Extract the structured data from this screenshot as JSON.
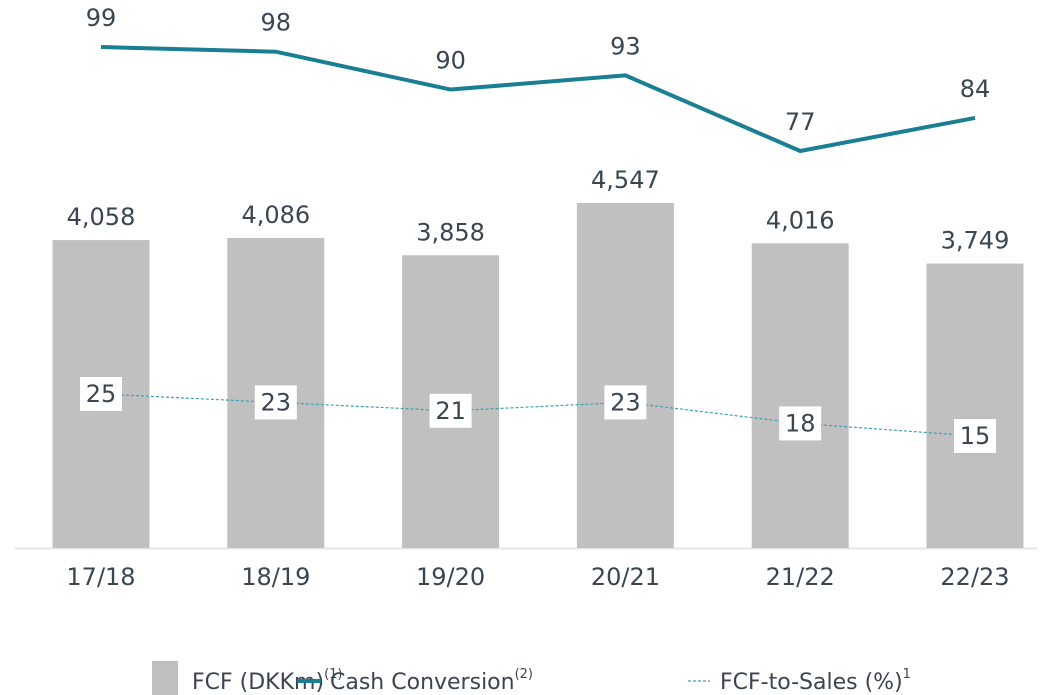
{
  "chart_data": {
    "type": "bar",
    "categories": [
      "17/18",
      "18/19",
      "19/20",
      "20/21",
      "21/22",
      "22/23"
    ],
    "series": [
      {
        "name": "FCF (DKKm)",
        "name_sup": "(1)",
        "type": "bar",
        "color": "#c0c0c0",
        "values": [
          4058,
          4086,
          3858,
          4547,
          4016,
          3749
        ],
        "value_labels": [
          "4,058",
          "4,086",
          "3,858",
          "4,547",
          "4,016",
          "3,749"
        ]
      },
      {
        "name": "Cash Conversion",
        "name_sup": "(2)",
        "type": "line",
        "color": "#1a7f93",
        "values": [
          99,
          98,
          90,
          93,
          77,
          84
        ]
      },
      {
        "name": "FCF-to-Sales (%)",
        "name_sup": "1",
        "type": "dashed-line",
        "color": "#3ba3b3",
        "values": [
          25,
          23,
          21,
          23,
          18,
          15
        ]
      }
    ]
  }
}
